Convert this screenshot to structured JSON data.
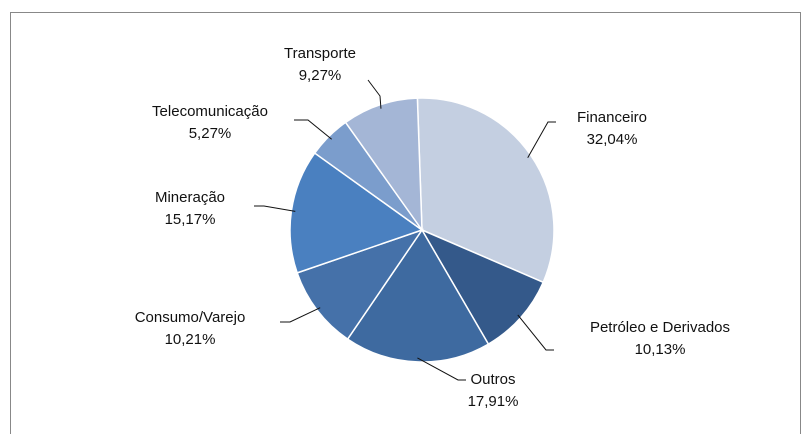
{
  "chart_data": {
    "type": "pie",
    "categories": [
      "Financeiro",
      "Petróleo e Derivados",
      "Outros",
      "Consumo/Varejo",
      "Mineração",
      "Telecomunicação",
      "Transporte"
    ],
    "values": [
      32.04,
      10.13,
      17.91,
      10.21,
      15.17,
      5.27,
      9.27
    ],
    "value_labels": [
      "32,04%",
      "10,13%",
      "17,91%",
      "10,21%",
      "15,17%",
      "5,27%",
      "9,27%"
    ],
    "colors": [
      "#c4cfe1",
      "#34598a",
      "#3e6aa0",
      "#4571a9",
      "#4a80c0",
      "#7b9dcc",
      "#a4b6d6"
    ]
  }
}
